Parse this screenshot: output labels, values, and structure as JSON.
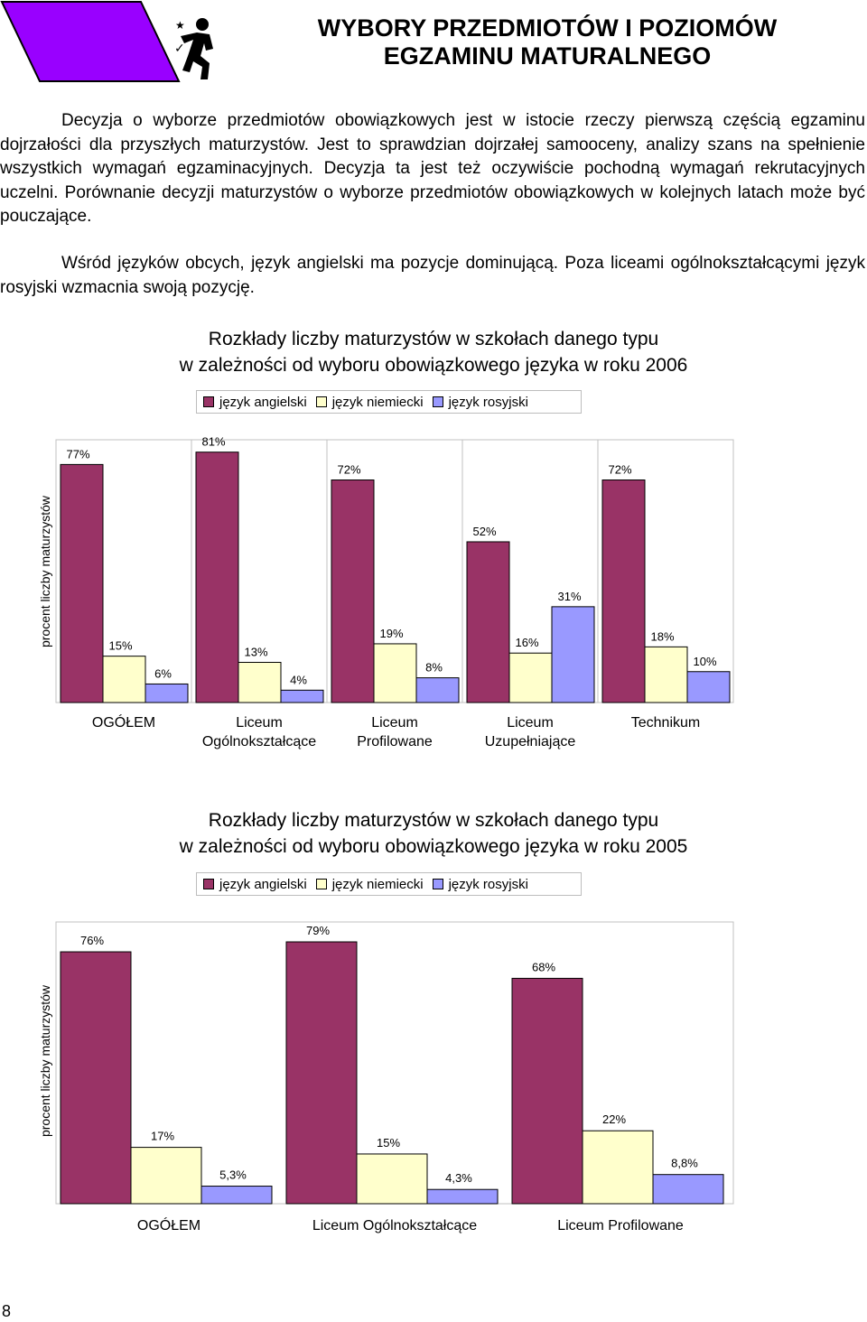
{
  "header": {
    "title_line1": "WYBORY PRZEDMIOTÓW I POZIOMÓW",
    "title_line2": "EGZAMINU MATURALNEGO",
    "banner_color": "#9900ff"
  },
  "body": {
    "paragraph1": "Decyzja o wyborze przedmiotów obowiązkowych jest w istocie rzeczy pierwszą częścią egzaminu dojrzałości dla przyszłych maturzystów. Jest to sprawdzian dojrzałej samooceny, analizy szans na spełnienie wszystkich wymagań egzaminacyjnych. Decyzja ta jest też oczywiście pochodną wymagań rekrutacyjnych uczelni. Porównanie decyzji maturzystów o wyborze przedmiotów obowiązkowych w kolejnych latach może być pouczające.",
    "paragraph2": "Wśród języków obcych, język angielski ma pozycje dominującą. Poza liceami ogólnokształcącymi język rosyjski wzmacnia swoją pozycję."
  },
  "colors": {
    "english": "#993366",
    "german": "#ffffcc",
    "russian": "#9999ff"
  },
  "page_number": "8",
  "chart_data": [
    {
      "type": "bar",
      "title_line1": "Rozkłady liczby maturzystów w szkołach danego typu",
      "title_line2": "w zależności od wyboru obowiązkowego języka w roku 2006",
      "ylabel": "procent liczby maturzystów",
      "legend": [
        "język angielski",
        "język niemiecki",
        "język rosyjski"
      ],
      "categories": [
        [
          "OGÓŁEM"
        ],
        [
          "Liceum",
          "Ogólnokształcące"
        ],
        [
          "Liceum",
          "Profilowane"
        ],
        [
          "Liceum",
          "Uzupełniające"
        ],
        [
          "Technikum"
        ]
      ],
      "series": [
        {
          "name": "język angielski",
          "values": [
            77,
            81,
            72,
            52,
            72
          ],
          "labels": [
            "77%",
            "81%",
            "72%",
            "52%",
            "72%"
          ]
        },
        {
          "name": "język niemiecki",
          "values": [
            15,
            13,
            19,
            16,
            18
          ],
          "labels": [
            "15%",
            "13%",
            "19%",
            "16%",
            "18%"
          ]
        },
        {
          "name": "język rosyjski",
          "values": [
            6,
            4,
            8,
            31,
            10
          ],
          "labels": [
            "6%",
            "4%",
            "8%",
            "31%",
            "10%"
          ]
        }
      ],
      "ylim": [
        0,
        85
      ]
    },
    {
      "type": "bar",
      "title_line1": "Rozkłady liczby maturzystów w szkołach danego typu",
      "title_line2": "w zależności od wyboru obowiązkowego języka w roku 2005",
      "ylabel": "procent liczby maturzystów",
      "legend": [
        "język angielski",
        "język niemiecki",
        "język rosyjski"
      ],
      "categories": [
        [
          "OGÓŁEM"
        ],
        [
          "Liceum Ogólnokształcące"
        ],
        [
          "Liceum Profilowane"
        ]
      ],
      "series": [
        {
          "name": "język angielski",
          "values": [
            76,
            79,
            68
          ],
          "labels": [
            "76%",
            "79%",
            "68%"
          ]
        },
        {
          "name": "język niemiecki",
          "values": [
            17,
            15,
            22
          ],
          "labels": [
            "17%",
            "15%",
            "22%"
          ]
        },
        {
          "name": "język rosyjski",
          "values": [
            5.3,
            4.3,
            8.8
          ],
          "labels": [
            "5,3%",
            "4,3%",
            "8,8%"
          ]
        }
      ],
      "ylim": [
        0,
        85
      ]
    }
  ]
}
